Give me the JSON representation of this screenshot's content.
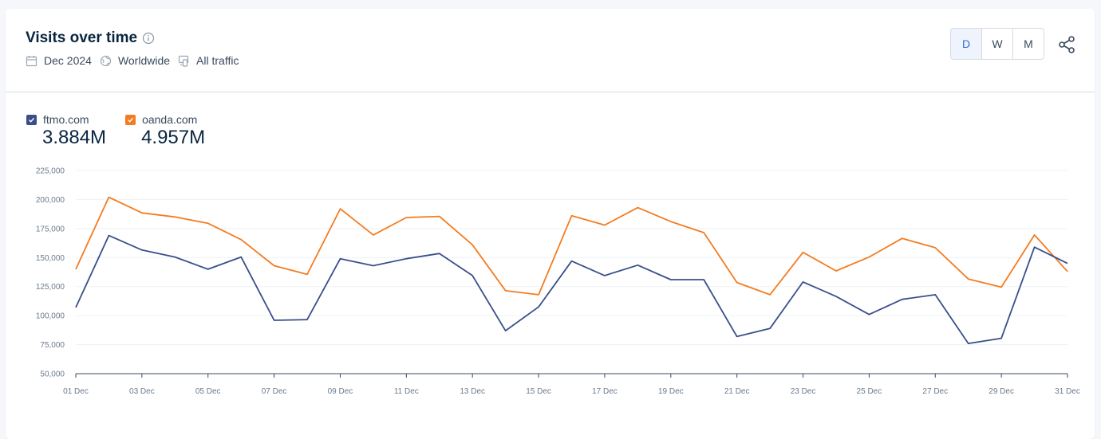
{
  "header": {
    "title": "Visits over time",
    "date": "Dec 2024",
    "region": "Worldwide",
    "traffic": "All traffic"
  },
  "granularity": {
    "options": [
      "D",
      "W",
      "M"
    ],
    "selected": "D"
  },
  "legend": [
    {
      "name": "ftmo.com",
      "total": "3.884M",
      "color": "#3a4f8a"
    },
    {
      "name": "oanda.com",
      "total": "4.957M",
      "color": "#f47c20"
    }
  ],
  "chart_data": {
    "type": "line",
    "x": [
      "01 Dec",
      "02 Dec",
      "03 Dec",
      "04 Dec",
      "05 Dec",
      "06 Dec",
      "07 Dec",
      "08 Dec",
      "09 Dec",
      "10 Dec",
      "11 Dec",
      "12 Dec",
      "13 Dec",
      "14 Dec",
      "15 Dec",
      "16 Dec",
      "17 Dec",
      "18 Dec",
      "19 Dec",
      "20 Dec",
      "21 Dec",
      "22 Dec",
      "23 Dec",
      "24 Dec",
      "25 Dec",
      "26 Dec",
      "27 Dec",
      "28 Dec",
      "29 Dec",
      "30 Dec",
      "31 Dec"
    ],
    "x_tick_labels": [
      "01 Dec",
      "03 Dec",
      "05 Dec",
      "07 Dec",
      "09 Dec",
      "11 Dec",
      "13 Dec",
      "15 Dec",
      "17 Dec",
      "19 Dec",
      "21 Dec",
      "23 Dec",
      "25 Dec",
      "27 Dec",
      "29 Dec",
      "31 Dec"
    ],
    "series": [
      {
        "name": "ftmo.com",
        "color": "#3a4f8a",
        "values": [
          107000,
          169000,
          156500,
          150500,
          140000,
          150500,
          96000,
          96500,
          149000,
          143000,
          149000,
          153500,
          134500,
          87000,
          107500,
          147000,
          134500,
          143500,
          131000,
          131000,
          82000,
          89000,
          129000,
          116500,
          101000,
          114000,
          118000,
          76000,
          80500,
          159000,
          145000
        ]
      },
      {
        "name": "oanda.com",
        "color": "#f47c20",
        "values": [
          140000,
          202000,
          188500,
          185000,
          179500,
          165500,
          143000,
          135500,
          192000,
          169500,
          184500,
          185500,
          161000,
          121500,
          118000,
          186000,
          178000,
          193000,
          181000,
          171500,
          128500,
          118000,
          154500,
          138500,
          150500,
          166500,
          158500,
          131500,
          124500,
          169500,
          138000
        ]
      }
    ],
    "ylim": [
      50000,
      225000
    ],
    "y_ticks": [
      50000,
      75000,
      100000,
      125000,
      150000,
      175000,
      200000,
      225000
    ],
    "y_tick_labels": [
      "50,000",
      "75,000",
      "100,000",
      "125,000",
      "150,000",
      "175,000",
      "200,000",
      "225,000"
    ],
    "grid": true,
    "legend_position": "top-left"
  }
}
